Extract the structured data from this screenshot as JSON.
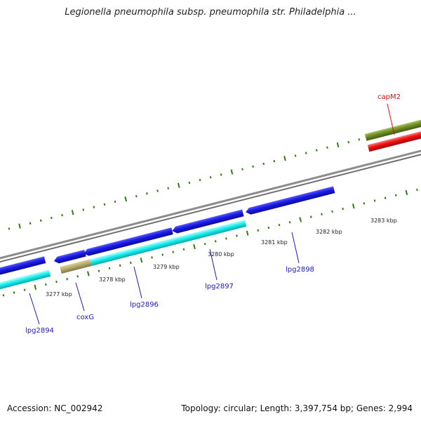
{
  "title": "Legionella pneumophila subsp. pneumophila str. Philadelphia ...",
  "footer": {
    "accession": "Accession: NC_002942",
    "summary": "Topology: circular; Length: 3,397,754 bp; Genes: 2,994"
  },
  "colors": {
    "backbone": "#8c8c8c",
    "tick_major": "#2e7d10",
    "tick_minor": "#2e7d10",
    "gene_blue": "#1a1ae6",
    "gene_cyan": "#19f0f0",
    "gene_khaki": "#b8ad6e",
    "gene_olive": "#6f8f24",
    "gene_red": "#f01010",
    "label_blue": "#1a1acc",
    "label_red": "#e01010"
  },
  "scale": {
    "ticks": [
      {
        "label": "3277 kbp"
      },
      {
        "label": "3278 kbp"
      },
      {
        "label": "3279 kbp"
      },
      {
        "label": "3280 kbp"
      },
      {
        "label": "3281 kbp"
      },
      {
        "label": "3282 kbp"
      },
      {
        "label": "3283 kbp"
      }
    ]
  },
  "gene_labels": [
    {
      "name": "lpg2894",
      "color": "blue"
    },
    {
      "name": "coxG",
      "color": "blue"
    },
    {
      "name": "lpg2896",
      "color": "blue"
    },
    {
      "name": "lpg2897",
      "color": "blue"
    },
    {
      "name": "lpg2898",
      "color": "blue"
    },
    {
      "name": "capM2",
      "color": "red"
    }
  ]
}
